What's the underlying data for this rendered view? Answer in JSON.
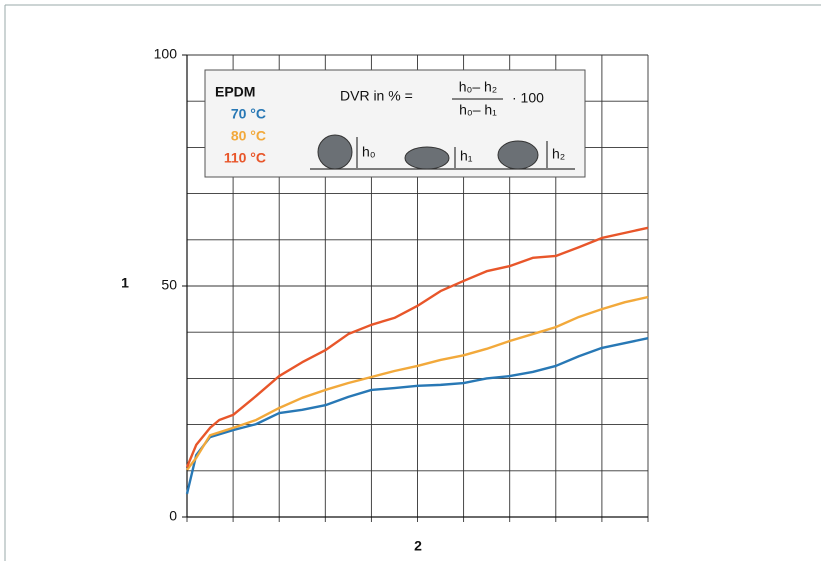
{
  "chart_data": {
    "type": "line",
    "y_label": "1",
    "x_label": "2",
    "xlim": [
      0,
      10
    ],
    "xticks": [
      0,
      1,
      2,
      3,
      4,
      5,
      6,
      7,
      8,
      9,
      10
    ],
    "ylim": [
      0,
      100
    ],
    "yticks": [
      0,
      50,
      100
    ],
    "ygrid": [
      10,
      20,
      30,
      40,
      50,
      60,
      70,
      80,
      90,
      100
    ],
    "grid": true,
    "legend_title": "EPDM",
    "formula": {
      "left": "DVR in % =",
      "numerator": "h₀– h₂",
      "denominator": "h₀– h₁",
      "factor": "· 100"
    },
    "diagram_labels": [
      "h₀",
      "h₁",
      "h₂"
    ],
    "series": [
      {
        "name": "70 °C",
        "color": "#2878b5",
        "x": [
          0,
          0.2,
          0.5,
          1,
          1.5,
          2,
          2.5,
          3,
          3.5,
          4,
          4.5,
          5,
          5.5,
          6,
          6.5,
          7,
          7.5,
          8,
          8.5,
          9,
          10
        ],
        "values": [
          5,
          13.4,
          17.3,
          18.8,
          20.1,
          22.5,
          23.2,
          24.2,
          26,
          27.5,
          27.9,
          28.4,
          28.6,
          29,
          30,
          30.5,
          31.4,
          32.7,
          34.8,
          36.6,
          38.7
        ]
      },
      {
        "name": "80 °C",
        "color": "#f2a93b",
        "x": [
          0,
          0.2,
          0.5,
          1,
          1.5,
          2,
          2.5,
          3,
          3.5,
          4,
          4.5,
          5,
          5.5,
          6,
          6.5,
          7,
          7.5,
          8,
          8.5,
          9,
          9.5,
          10
        ],
        "values": [
          10.2,
          12.8,
          17.7,
          19.3,
          21,
          23.6,
          25.8,
          27.5,
          29,
          30.3,
          31.6,
          32.7,
          34,
          35,
          36.4,
          38.1,
          39.6,
          41.1,
          43.3,
          45,
          46.5,
          47.6
        ]
      },
      {
        "name": "110 °C",
        "color": "#e8562a",
        "x": [
          0,
          0.2,
          0.5,
          0.7,
          1,
          1.5,
          2,
          2.5,
          3,
          3.5,
          4,
          4.5,
          5,
          5.5,
          6,
          6.5,
          7,
          7.5,
          8,
          8.5,
          9,
          9.5,
          10
        ],
        "values": [
          10.8,
          15.6,
          19.3,
          21,
          22.1,
          26.2,
          30.5,
          33.5,
          36.1,
          39.6,
          41.6,
          43.1,
          45.7,
          48.9,
          51.1,
          53.2,
          54.3,
          56.1,
          56.5,
          58.4,
          60.4,
          61.5,
          62.6
        ]
      }
    ]
  }
}
